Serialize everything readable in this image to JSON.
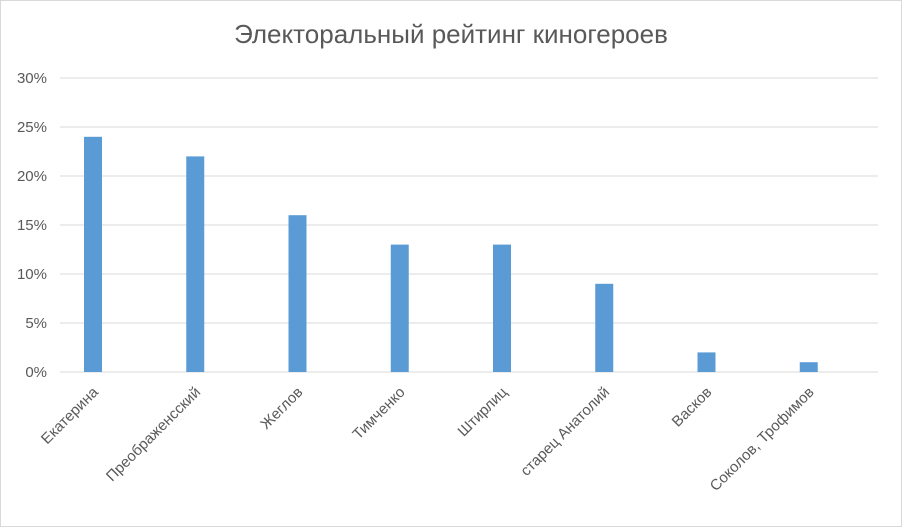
{
  "chart_data": {
    "type": "bar",
    "title": "Электоральный рейтинг киногероев",
    "xlabel": "",
    "ylabel": "",
    "categories": [
      "Екатерина",
      "Преображенсский",
      "Жеглов",
      "Тимченко",
      "Штирлиц",
      "старец Анатолий",
      "Васков",
      "Соколов, Трофимов"
    ],
    "values": [
      24,
      22,
      16,
      13,
      13,
      9,
      2,
      1
    ],
    "value_unit": "%",
    "ylim": [
      0,
      30
    ],
    "yticks": [
      "0%",
      "5%",
      "10%",
      "15%",
      "20%",
      "25%",
      "30%"
    ],
    "grid": true,
    "legend": "none",
    "colors": {
      "bar": "#5b9bd5",
      "grid": "#d9d9d9",
      "text": "#595959"
    }
  }
}
